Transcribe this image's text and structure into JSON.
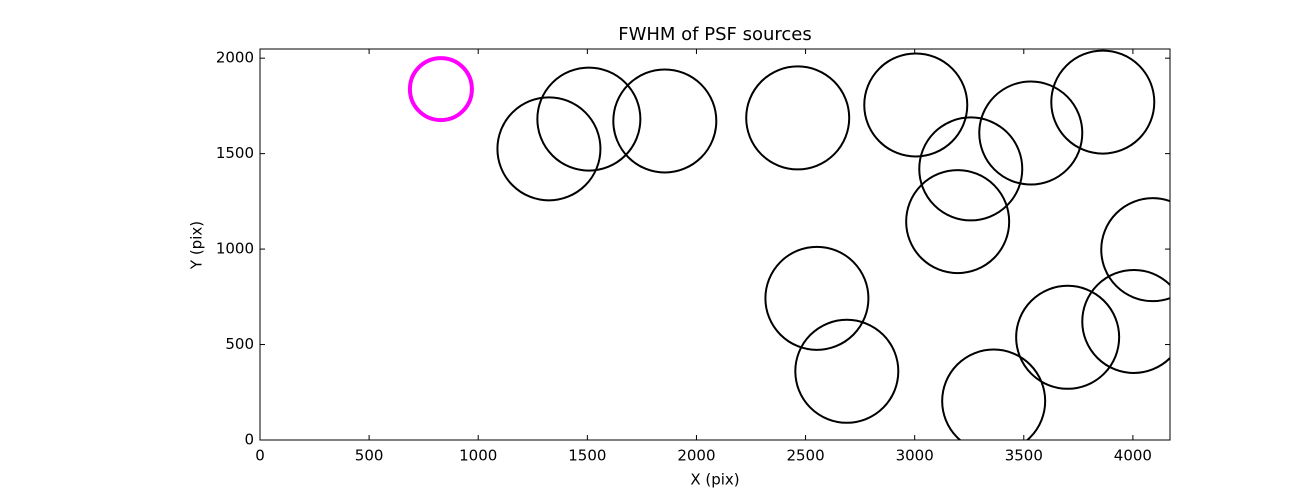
{
  "chart_data": {
    "type": "scatter",
    "title": "FWHM of PSF sources",
    "xlabel": "X (pix)",
    "ylabel": "Y (pix)",
    "xlim": [
      0,
      4170
    ],
    "ylim": [
      0,
      2048
    ],
    "xticks": [
      0,
      500,
      1000,
      1500,
      2000,
      2500,
      3000,
      3500,
      4000
    ],
    "yticks": [
      0,
      500,
      1000,
      1500,
      2000
    ],
    "series": [
      {
        "color": "#ff00ff",
        "x": [
          829
        ],
        "values": [
          1838
        ],
        "sizes": [
          142
        ],
        "linewidth": 4
      },
      {
        "color": "#000000",
        "x": [
          1324,
          1507,
          1855,
          2464,
          3005,
          3257,
          3532,
          3862,
          3197,
          4091,
          2552,
          2689,
          4004,
          3701,
          3362
        ],
        "values": [
          1525,
          1681,
          1671,
          1687,
          1755,
          1420,
          1608,
          1770,
          1144,
          997,
          742,
          360,
          621,
          538,
          204
        ],
        "sizes": [
          236,
          236,
          236,
          236,
          236,
          236,
          236,
          236,
          236,
          236,
          236,
          236,
          236,
          236,
          236
        ],
        "linewidth": 2
      }
    ]
  }
}
